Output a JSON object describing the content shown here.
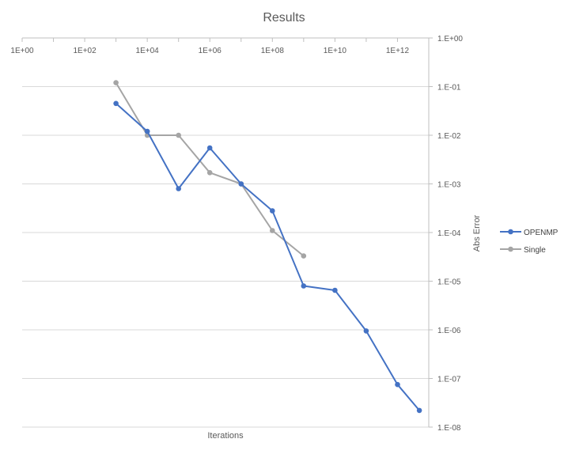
{
  "chart_data": {
    "type": "line",
    "title": "Results",
    "xlabel": "Iterations",
    "ylabel": "Abs  Error",
    "x_scale": "log10",
    "y_scale": "log10",
    "xlim": [
      1,
      10000000000000
    ],
    "ylim": [
      1e-08,
      1
    ],
    "x_tick_labels": [
      "1E+00",
      "1E+02",
      "1E+04",
      "1E+06",
      "1E+08",
      "1E+10",
      "1E+12"
    ],
    "x_tick_values": [
      1,
      100,
      10000,
      1000000,
      100000000,
      10000000000,
      1000000000000
    ],
    "y_tick_labels": [
      "1.E+00",
      "1.E-01",
      "1.E-02",
      "1.E-03",
      "1.E-04",
      "1.E-05",
      "1.E-06",
      "1.E-07",
      "1.E-08"
    ],
    "y_tick_values": [
      1,
      0.1,
      0.01,
      0.001,
      0.0001,
      1e-05,
      1e-06,
      1e-07,
      1e-08
    ],
    "x_axis_position": "top",
    "y_axis_position": "right",
    "grid": "horizontal",
    "legend_position": "right",
    "series": [
      {
        "name": "OPENMP",
        "color": "#4472C4",
        "x": [
          1000,
          10000,
          100000,
          1000000,
          10000000,
          100000000,
          1000000000,
          10000000000,
          100000000000,
          1000000000000,
          5000000000000
        ],
        "y": [
          0.045,
          0.012,
          0.0008,
          0.0055,
          0.001,
          0.00028,
          8e-06,
          6.5e-06,
          9.5e-07,
          7.5e-08,
          2.2e-08
        ]
      },
      {
        "name": "Single",
        "color": "#A5A5A5",
        "x": [
          1000,
          10000,
          100000,
          1000000,
          10000000,
          100000000,
          1000000000
        ],
        "y": [
          0.12,
          0.01,
          0.01,
          0.0017,
          0.001,
          0.00011,
          3.3e-05
        ]
      }
    ]
  }
}
